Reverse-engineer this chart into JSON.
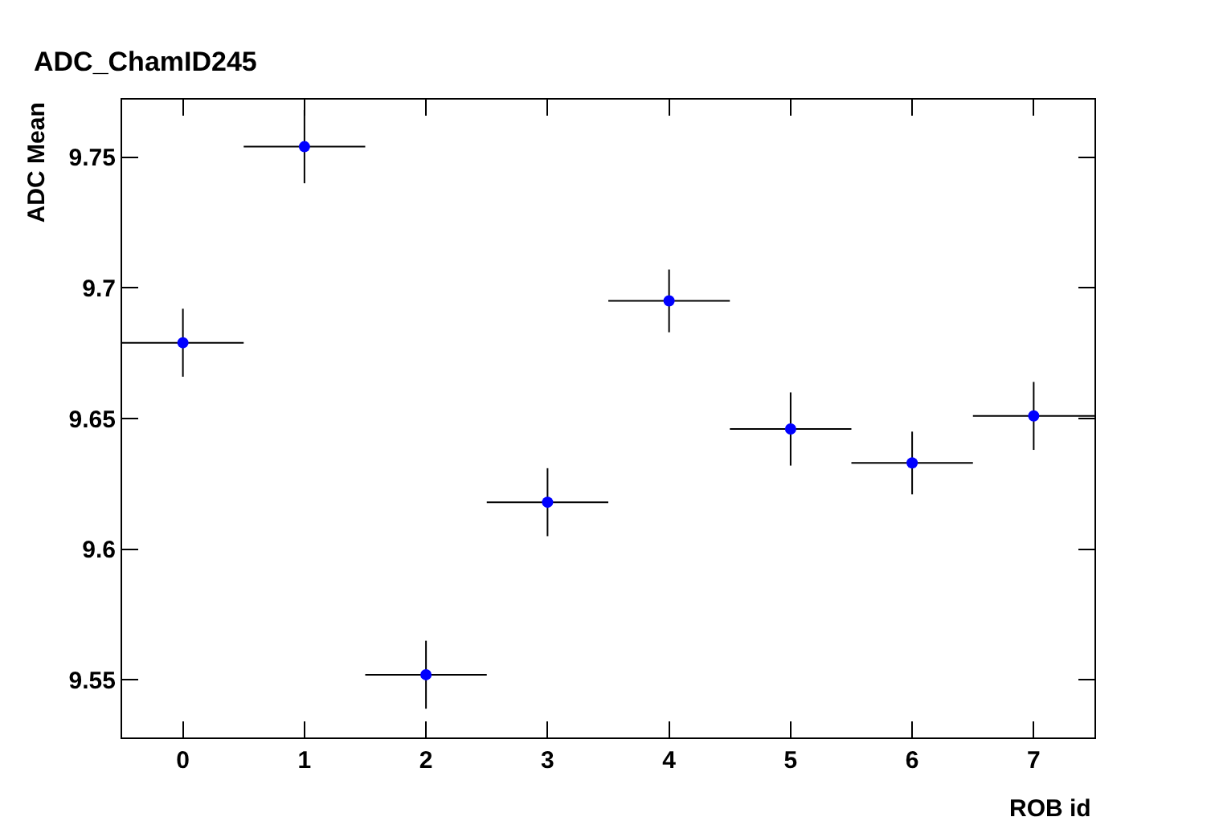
{
  "chart_data": {
    "type": "scatter",
    "title": "ADC_ChamID245",
    "xlabel": "ROB id",
    "ylabel": "ADC Mean",
    "x": [
      0,
      1,
      2,
      3,
      4,
      5,
      6,
      7
    ],
    "values": [
      9.679,
      9.754,
      9.552,
      9.618,
      9.695,
      9.646,
      9.633,
      9.651
    ],
    "errors": [
      0.013,
      0.014,
      0.013,
      0.013,
      0.012,
      0.014,
      0.012,
      0.013
    ],
    "xerrors": [
      0.5,
      0.5,
      0.5,
      0.5,
      0.5,
      0.5,
      0.5,
      0.5
    ],
    "color": "#0000ff",
    "marker": "circle",
    "grid": false,
    "legend": false,
    "xlim": [
      -0.5,
      7.5
    ],
    "xticks": [
      0,
      1,
      2,
      3,
      4,
      5,
      6,
      7
    ],
    "ylim": [
      9.528,
      9.772
    ],
    "yticks": [
      9.55,
      9.6,
      9.65,
      9.7,
      9.75
    ]
  }
}
